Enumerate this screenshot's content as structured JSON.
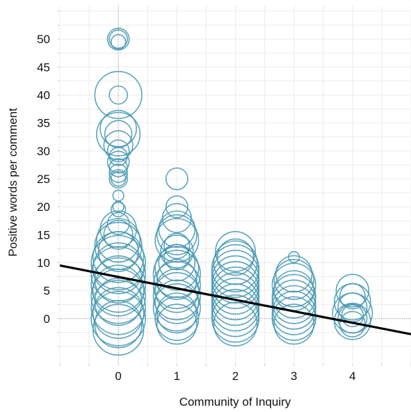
{
  "chart_data": {
    "type": "scatter",
    "title": "",
    "xlabel": "Community of Inquiry",
    "ylabel": "Positive words per comment",
    "xlim": [
      -1,
      5
    ],
    "ylim": [
      -8,
      56
    ],
    "x_ticks": [
      0,
      1,
      2,
      3,
      4
    ],
    "y_ticks": [
      0,
      5,
      10,
      15,
      20,
      25,
      30,
      35,
      40,
      45,
      50
    ],
    "grid": true,
    "legend": "none",
    "marker_color": "#4a9ab4",
    "line_color": "#000000",
    "trend_line": {
      "x": [
        -1,
        5
      ],
      "y": [
        9.5,
        -2.8
      ]
    },
    "series": [
      {
        "points": [
          {
            "x": 0,
            "y": 50,
            "s": 1.2
          },
          {
            "x": 0,
            "y": 50,
            "s": 1.0
          },
          {
            "x": 0,
            "y": 49.5,
            "s": 0.8
          },
          {
            "x": 0,
            "y": 40,
            "s": 2.6
          },
          {
            "x": 0,
            "y": 40,
            "s": 1.0
          },
          {
            "x": 0,
            "y": 34,
            "s": 2.0
          },
          {
            "x": 0,
            "y": 33,
            "s": 2.4
          },
          {
            "x": 0,
            "y": 33,
            "s": 1.5
          },
          {
            "x": 0,
            "y": 31,
            "s": 1.6
          },
          {
            "x": 0,
            "y": 30,
            "s": 1.2
          },
          {
            "x": 0,
            "y": 29,
            "s": 1.0
          },
          {
            "x": 0,
            "y": 28,
            "s": 1.2
          },
          {
            "x": 0,
            "y": 27,
            "s": 1.0
          },
          {
            "x": 0,
            "y": 26,
            "s": 1.0
          },
          {
            "x": 0,
            "y": 25,
            "s": 0.8
          },
          {
            "x": 0,
            "y": 25,
            "s": 1.0
          },
          {
            "x": 0,
            "y": 22,
            "s": 0.6
          },
          {
            "x": 0,
            "y": 20,
            "s": 0.6
          },
          {
            "x": 0,
            "y": 19.5,
            "s": 0.8
          },
          {
            "x": 0,
            "y": 17,
            "s": 1.2
          },
          {
            "x": 0,
            "y": 16,
            "s": 2.0
          },
          {
            "x": 0,
            "y": 15,
            "s": 1.6
          },
          {
            "x": 0,
            "y": 14,
            "s": 2.4
          },
          {
            "x": 0,
            "y": 13,
            "s": 2.6
          },
          {
            "x": 0,
            "y": 12,
            "s": 2.2
          },
          {
            "x": 0,
            "y": 11,
            "s": 2.8
          },
          {
            "x": 0,
            "y": 10,
            "s": 3.0
          },
          {
            "x": 0,
            "y": 9,
            "s": 2.8
          },
          {
            "x": 0,
            "y": 8,
            "s": 3.0
          },
          {
            "x": 0,
            "y": 7,
            "s": 2.6
          },
          {
            "x": 0,
            "y": 6,
            "s": 3.0
          },
          {
            "x": 0,
            "y": 5,
            "s": 2.8
          },
          {
            "x": 0,
            "y": 4,
            "s": 3.0
          },
          {
            "x": 0,
            "y": 3,
            "s": 2.6
          },
          {
            "x": 0,
            "y": 2,
            "s": 3.0
          },
          {
            "x": 0,
            "y": 1,
            "s": 2.8
          },
          {
            "x": 0,
            "y": 0,
            "s": 3.0
          },
          {
            "x": 0,
            "y": -1,
            "s": 2.6
          },
          {
            "x": 0,
            "y": -2,
            "s": 2.8
          },
          {
            "x": 1,
            "y": 25,
            "s": 1.2
          },
          {
            "x": 1,
            "y": 20,
            "s": 1.2
          },
          {
            "x": 1,
            "y": 18,
            "s": 1.6
          },
          {
            "x": 1,
            "y": 16,
            "s": 2.0
          },
          {
            "x": 1,
            "y": 15,
            "s": 2.2
          },
          {
            "x": 1,
            "y": 14,
            "s": 2.4
          },
          {
            "x": 1,
            "y": 13,
            "s": 1.4
          },
          {
            "x": 1,
            "y": 12,
            "s": 1.8
          },
          {
            "x": 1,
            "y": 11,
            "s": 1.4
          },
          {
            "x": 1,
            "y": 10,
            "s": 2.0
          },
          {
            "x": 1,
            "y": 9,
            "s": 2.4
          },
          {
            "x": 1,
            "y": 8,
            "s": 2.6
          },
          {
            "x": 1,
            "y": 7,
            "s": 2.2
          },
          {
            "x": 1,
            "y": 6,
            "s": 2.6
          },
          {
            "x": 1,
            "y": 5,
            "s": 2.4
          },
          {
            "x": 1,
            "y": 4,
            "s": 2.6
          },
          {
            "x": 1,
            "y": 3,
            "s": 2.4
          },
          {
            "x": 1,
            "y": 2,
            "s": 2.6
          },
          {
            "x": 1,
            "y": 1,
            "s": 2.2
          },
          {
            "x": 1,
            "y": 0,
            "s": 2.4
          },
          {
            "x": 1,
            "y": -1,
            "s": 2.2
          },
          {
            "x": 2,
            "y": 12,
            "s": 2.2
          },
          {
            "x": 2,
            "y": 11,
            "s": 2.0
          },
          {
            "x": 2,
            "y": 10,
            "s": 2.4
          },
          {
            "x": 2,
            "y": 9,
            "s": 2.6
          },
          {
            "x": 2,
            "y": 8,
            "s": 2.6
          },
          {
            "x": 2,
            "y": 7,
            "s": 2.6
          },
          {
            "x": 2,
            "y": 6,
            "s": 2.6
          },
          {
            "x": 2,
            "y": 5,
            "s": 2.6
          },
          {
            "x": 2,
            "y": 4,
            "s": 2.6
          },
          {
            "x": 2,
            "y": 3,
            "s": 2.6
          },
          {
            "x": 2,
            "y": 2,
            "s": 2.6
          },
          {
            "x": 2,
            "y": 1,
            "s": 2.6
          },
          {
            "x": 2,
            "y": 0,
            "s": 2.6
          },
          {
            "x": 2,
            "y": -1,
            "s": 2.4
          },
          {
            "x": 3,
            "y": 11,
            "s": 0.6
          },
          {
            "x": 3,
            "y": 8,
            "s": 2.0
          },
          {
            "x": 3,
            "y": 7,
            "s": 2.2
          },
          {
            "x": 3,
            "y": 6,
            "s": 2.4
          },
          {
            "x": 3,
            "y": 5,
            "s": 2.2
          },
          {
            "x": 3,
            "y": 4,
            "s": 2.4
          },
          {
            "x": 3,
            "y": 3,
            "s": 2.4
          },
          {
            "x": 3,
            "y": 2,
            "s": 2.4
          },
          {
            "x": 3,
            "y": 1,
            "s": 2.4
          },
          {
            "x": 3,
            "y": 0,
            "s": 2.4
          },
          {
            "x": 3,
            "y": -1,
            "s": 2.2
          },
          {
            "x": 4,
            "y": 5,
            "s": 1.8
          },
          {
            "x": 4,
            "y": 4,
            "s": 1.4
          },
          {
            "x": 4,
            "y": 3,
            "s": 2.0
          },
          {
            "x": 4,
            "y": 2,
            "s": 1.6
          },
          {
            "x": 4,
            "y": 1,
            "s": 2.2
          },
          {
            "x": 4,
            "y": 0.5,
            "s": 1.2
          },
          {
            "x": 4,
            "y": 0,
            "s": 1.6
          },
          {
            "x": 4,
            "y": -0.5,
            "s": 2.0
          },
          {
            "x": 4,
            "y": -1,
            "s": 1.4
          }
        ]
      }
    ]
  }
}
